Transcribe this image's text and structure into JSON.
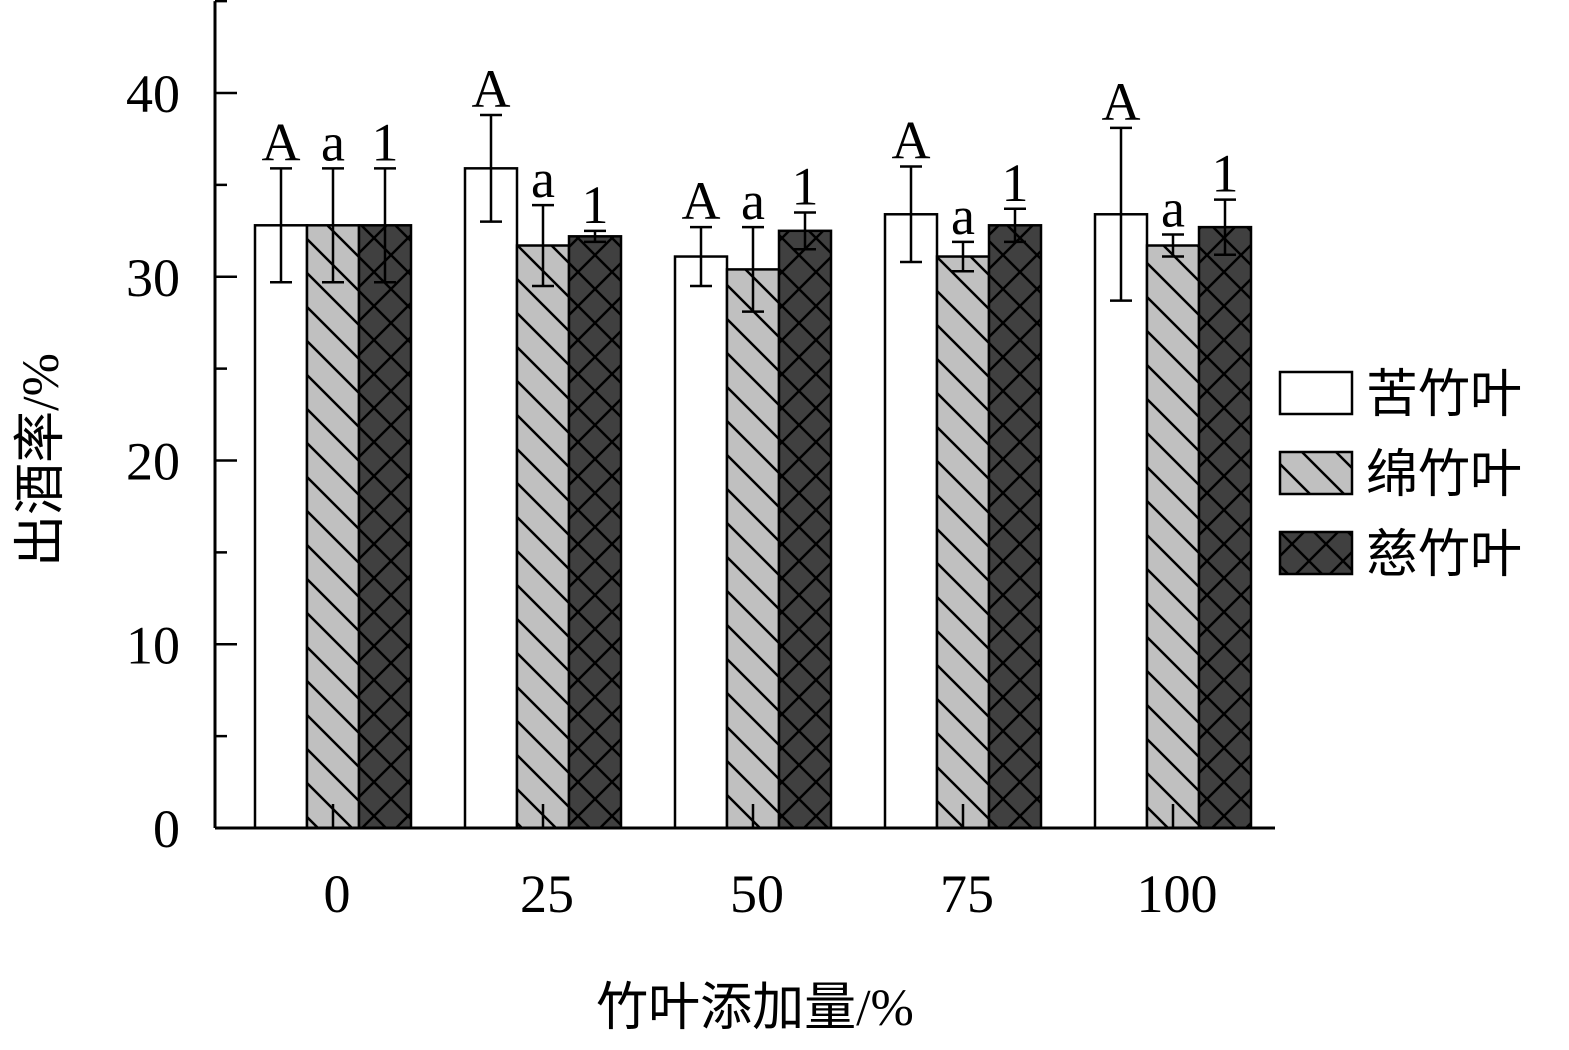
{
  "chart_data": {
    "type": "bar",
    "title": "",
    "xlabel": "竹叶添加量/%",
    "ylabel": "出酒率/%",
    "ylim": [
      0,
      45
    ],
    "yticks": [
      "0",
      "10",
      "20",
      "30",
      "40"
    ],
    "categories": [
      "0",
      "25",
      "50",
      "75",
      "100"
    ],
    "legend_position": "right",
    "series": [
      {
        "name": "苦竹叶",
        "fill": "#ffffff",
        "pattern": "none",
        "values": [
          32.8,
          35.9,
          31.1,
          33.4,
          33.4
        ],
        "errors": [
          3.1,
          2.9,
          1.6,
          2.6,
          4.7
        ],
        "labels": [
          "A",
          "A",
          "A",
          "A",
          "A"
        ]
      },
      {
        "name": "绵竹叶",
        "fill": "#c0c0c0",
        "pattern": "diagonal",
        "values": [
          32.8,
          31.7,
          30.4,
          31.1,
          31.7
        ],
        "errors": [
          3.1,
          2.2,
          2.3,
          0.8,
          0.6
        ],
        "labels": [
          "a",
          "a",
          "a",
          "a",
          "a"
        ]
      },
      {
        "name": "慈竹叶",
        "fill": "#404040",
        "pattern": "crosshatch",
        "values": [
          32.8,
          32.2,
          32.5,
          32.8,
          32.7
        ],
        "errors": [
          3.1,
          0.3,
          1.0,
          0.9,
          1.5
        ],
        "labels": [
          "1",
          "1",
          "1",
          "1",
          "1"
        ]
      }
    ]
  }
}
